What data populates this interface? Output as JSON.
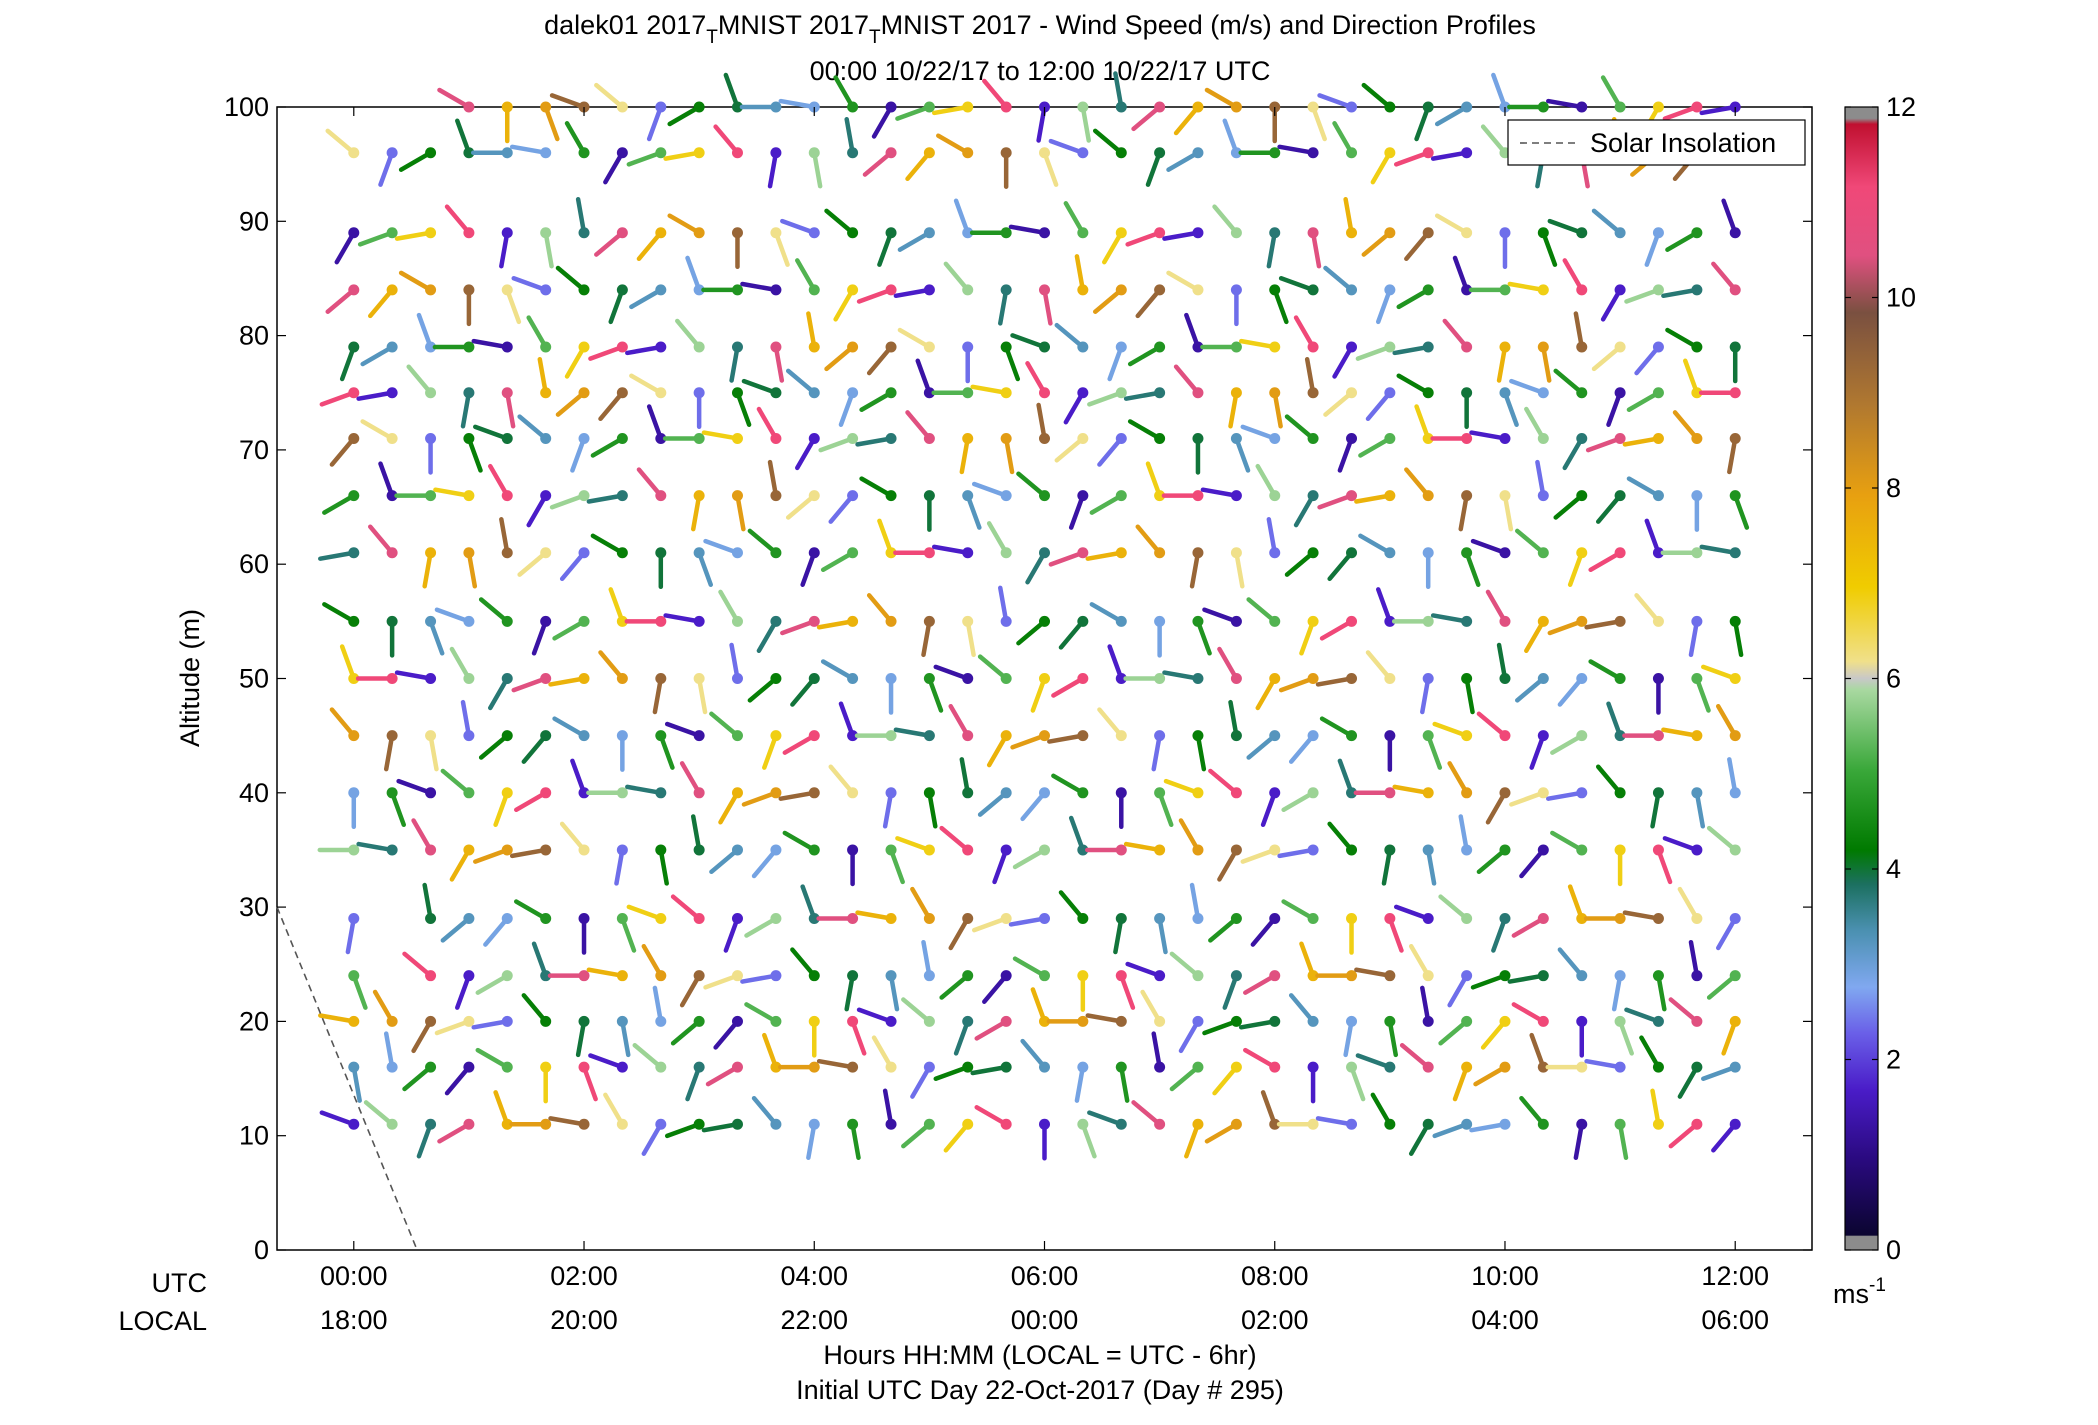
{
  "title": {
    "line1_prefix": "dalek01 2017",
    "sub1": "T",
    "line1_mid": "MNIST 2017",
    "sub2": "T",
    "line1_suffix": "MNIST 2017 - Wind Speed (m/s) and Direction Profiles",
    "line2": "00:00 10/22/17 to 12:00 10/22/17  UTC"
  },
  "chart_data": {
    "type": "scatter",
    "title": "dalek01 2017_T MNIST 2017_T MNIST 2017 - Wind Speed (m/s) and Direction Profiles",
    "subtitle": "00:00 10/22/17 to 12:00 10/22/17  UTC",
    "ylabel": "Altitude (m)",
    "xlabel": "Hours HH:MM  (LOCAL = UTC - 6hr)",
    "xlabel2": "Initial UTC Day 22-Oct-2017 (Day # 295)",
    "xlim": [
      -0.667,
      12.667
    ],
    "ylim": [
      0,
      100
    ],
    "y_ticks": [
      0,
      10,
      20,
      30,
      40,
      50,
      60,
      70,
      80,
      90,
      100
    ],
    "x_ticks_utc": [
      "00:00",
      "02:00",
      "04:00",
      "06:00",
      "08:00",
      "10:00",
      "12:00"
    ],
    "x_ticks_local": [
      "18:00",
      "20:00",
      "22:00",
      "00:00",
      "02:00",
      "04:00",
      "06:00"
    ],
    "x_row_labels": [
      "UTC",
      "LOCAL"
    ],
    "legend": {
      "entries": [
        "Solar Insolation"
      ],
      "placement": "top-right",
      "style": "dashed gray line"
    },
    "solar_insolation": {
      "x": [
        -0.667,
        0.55
      ],
      "y": [
        30,
        0
      ]
    },
    "colorbar": {
      "label_base": "ms",
      "label_exp": "-1",
      "range": [
        0,
        12
      ],
      "ticks": [
        0,
        2,
        4,
        6,
        8,
        10,
        12
      ]
    },
    "grid": false,
    "profile_times_hours": [
      0,
      0.333,
      0.667,
      1,
      1.333,
      1.667,
      2,
      2.333,
      2.667,
      3,
      3.333,
      3.667,
      4,
      4.333,
      4.667,
      5,
      5.333,
      5.667,
      6,
      6.333,
      6.667,
      7,
      7.333,
      7.667,
      8,
      8.333,
      8.667,
      9,
      9.333,
      9.667,
      10,
      10.333,
      10.667,
      11,
      11.333,
      11.667,
      12
    ],
    "profile_altitudes_m": [
      11,
      16,
      20,
      24,
      29,
      35,
      40,
      45,
      50,
      55,
      61,
      66,
      71,
      75,
      79,
      84,
      89,
      96,
      100
    ],
    "speed_pattern_ms": [
      5.2,
      3.8,
      8.1,
      1.6,
      4.6,
      2.3,
      10.4,
      6.9,
      3.1,
      9.3,
      5.8,
      1.2,
      4.2,
      7.6,
      11.2,
      2.8,
      6.3,
      3.5
    ],
    "direction_pattern_deg": [
      250,
      290,
      320,
      200,
      170,
      340,
      230,
      280,
      300,
      210,
      160,
      260,
      310,
      190,
      240,
      350,
      270,
      220,
      330,
      180
    ]
  }
}
